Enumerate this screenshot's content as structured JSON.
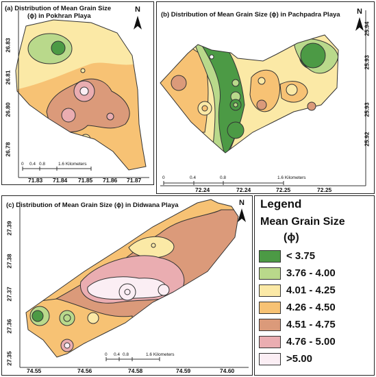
{
  "panels": {
    "a": {
      "title": "(a)   Distribution of Mean Grain Size",
      "title2": "(ϕ) in Pokhran Playa",
      "yticks": [
        "26.83",
        "26.81",
        "26.80",
        "26.78"
      ],
      "xticks": [
        "71.83",
        "71.84",
        "71.85",
        "71.86",
        "71.87"
      ],
      "scale": [
        "0",
        "0.4",
        "0.8",
        "1.6 Kilometers"
      ]
    },
    "b": {
      "title": "(b)    Distribution of Mean Grain Size (ϕ)  in Pachpadra Playa",
      "yticks": [
        "25.94",
        "25.93",
        "25.93",
        "25.92"
      ],
      "xticks": [
        "72.24",
        "72.24",
        "72.25",
        "72.25"
      ],
      "scale": [
        "0",
        "0.4",
        "0.8",
        "1.6 Kilometers"
      ]
    },
    "c": {
      "title": "(c)   Distribution of Mean Grain Size (ϕ) in Didwana Playa",
      "yticks": [
        "27.39",
        "27.38",
        "27.37",
        "27.36",
        "27.35"
      ],
      "xticks": [
        "74.55",
        "74.56",
        "74.58",
        "74.59",
        "74.60"
      ],
      "scale": [
        "0",
        "0.4",
        "0.8",
        "1.6 Kilometers"
      ]
    },
    "north_label": "N"
  },
  "legend": {
    "title": "Legend",
    "subtitle": "Mean Grain Size",
    "unit": "(ϕ)",
    "classes": [
      {
        "label": "< 3.75",
        "color": "#4c9a45"
      },
      {
        "label": "3.76 - 4.00",
        "color": "#b9d98b"
      },
      {
        "label": "4.01 - 4.25",
        "color": "#fbe9a6"
      },
      {
        "label": "4.26 - 4.50",
        "color": "#f7c274"
      },
      {
        "label": "4.51 - 4.75",
        "color": "#db9a7a"
      },
      {
        "label": "4.76 - 5.00",
        "color": "#eaadb1"
      },
      {
        "label": ">5.00",
        "color": "#fbeef4"
      }
    ]
  }
}
